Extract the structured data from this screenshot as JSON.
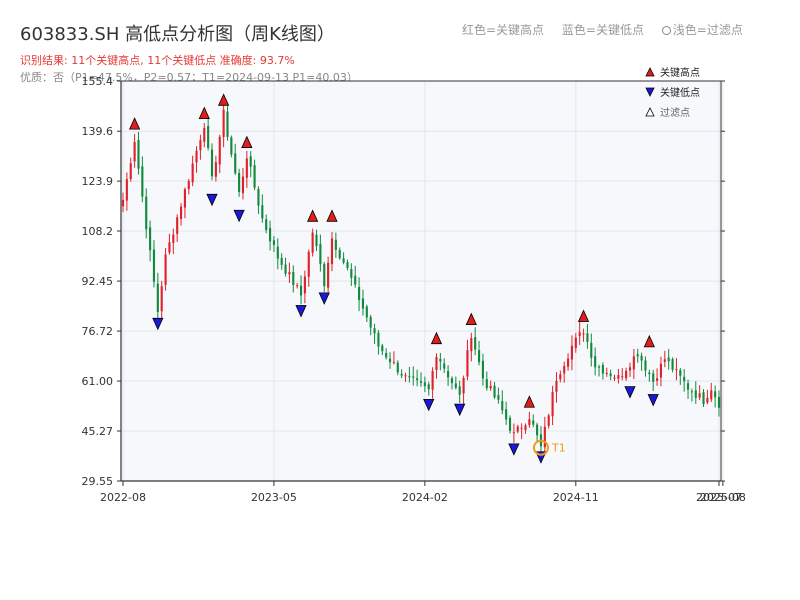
{
  "header": {
    "title": "603833.SH 高低点分析图（周K线图）",
    "result_line": "识别结果: 11个关键高点, 11个关键低点   准确度: 93.7%",
    "params_line": "优质：否（P1=47.5%，P2=0.57；T1=2024-09-13 P1=40.03）"
  },
  "top_legend": {
    "red": "红色=关键高点",
    "blue": "蓝色=关键低点",
    "hollow": "浅色=过滤点"
  },
  "colors": {
    "up": "#e0202a",
    "down": "#118a3c",
    "high_marker": "#e01e1e",
    "low_marker": "#1a1ad6",
    "t1": "#f39c12",
    "plot_bg": "#f6f8fb",
    "grid": "#e2e6ec"
  },
  "chart_data": {
    "type": "candlestick",
    "ylim": [
      29.55,
      155.4
    ],
    "y_ticks": [
      29.55,
      45.27,
      61.0,
      76.72,
      92.45,
      108.2,
      123.9,
      139.6,
      155.4
    ],
    "y_tick_labels": [
      "29.55",
      "45.27",
      "61.00",
      "76.72",
      "92.45",
      "108.2",
      "123.9",
      "139.6",
      "155.4"
    ],
    "x_range_weeks": [
      0,
      154
    ],
    "x_ticks": [
      {
        "week": 0,
        "label": "2022-08"
      },
      {
        "week": 39,
        "label": "2023-05"
      },
      {
        "week": 78,
        "label": "2024-02"
      },
      {
        "week": 117,
        "label": "2024-11"
      },
      {
        "week": 154,
        "label": "2025-07"
      },
      {
        "week": 155,
        "label": "2025-08"
      }
    ],
    "legend": {
      "position": "top-right",
      "items": [
        {
          "label": "关键高点",
          "marker": "triangle-up",
          "color": "#e01e1e"
        },
        {
          "label": "关键低点",
          "marker": "triangle-down",
          "color": "#1a1ad6"
        },
        {
          "label": "过滤点",
          "marker": "triangle-up-hollow",
          "color": "#ffffff"
        }
      ]
    },
    "anchors": [
      [
        0,
        118
      ],
      [
        3,
        137
      ],
      [
        9,
        83
      ],
      [
        11,
        100
      ],
      [
        17,
        125
      ],
      [
        21,
        142
      ],
      [
        23,
        124
      ],
      [
        26,
        145
      ],
      [
        30,
        120
      ],
      [
        32,
        132
      ],
      [
        36,
        112
      ],
      [
        40,
        100
      ],
      [
        46,
        88
      ],
      [
        49,
        108
      ],
      [
        52,
        92
      ],
      [
        54,
        106
      ],
      [
        58,
        96
      ],
      [
        66,
        72
      ],
      [
        73,
        62
      ],
      [
        79,
        58
      ],
      [
        81,
        70
      ],
      [
        87,
        56
      ],
      [
        90,
        76
      ],
      [
        93,
        62
      ],
      [
        97,
        54
      ],
      [
        101,
        44
      ],
      [
        105,
        50
      ],
      [
        108,
        40
      ],
      [
        112,
        62
      ],
      [
        116,
        72
      ],
      [
        119,
        77
      ],
      [
        122,
        66
      ],
      [
        128,
        62
      ],
      [
        133,
        70
      ],
      [
        137,
        61
      ],
      [
        140,
        68
      ],
      [
        146,
        59
      ],
      [
        150,
        55
      ],
      [
        152,
        59
      ],
      [
        154,
        54
      ]
    ],
    "key_highs": [
      {
        "week": 3,
        "price": 139.0
      },
      {
        "week": 21,
        "price": 142.3
      },
      {
        "week": 26,
        "price": 146.5
      },
      {
        "week": 32,
        "price": 133.2
      },
      {
        "week": 49,
        "price": 110.0
      },
      {
        "week": 54,
        "price": 110.0
      },
      {
        "week": 81,
        "price": 71.5
      },
      {
        "week": 90,
        "price": 77.5
      },
      {
        "week": 105,
        "price": 51.5
      },
      {
        "week": 119,
        "price": 78.5
      },
      {
        "week": 136,
        "price": 70.5
      }
    ],
    "key_lows": [
      {
        "week": 9,
        "price": 82.0
      },
      {
        "week": 23,
        "price": 121.0
      },
      {
        "week": 30,
        "price": 116.0
      },
      {
        "week": 46,
        "price": 86.0
      },
      {
        "week": 52,
        "price": 90.0
      },
      {
        "week": 79,
        "price": 56.5
      },
      {
        "week": 87,
        "price": 55.0
      },
      {
        "week": 101,
        "price": 42.5
      },
      {
        "week": 108,
        "price": 40.0
      },
      {
        "week": 131,
        "price": 60.5
      },
      {
        "week": 137,
        "price": 58.0
      }
    ],
    "t1": {
      "week": 108,
      "price": 40.03,
      "label": "T1"
    }
  }
}
